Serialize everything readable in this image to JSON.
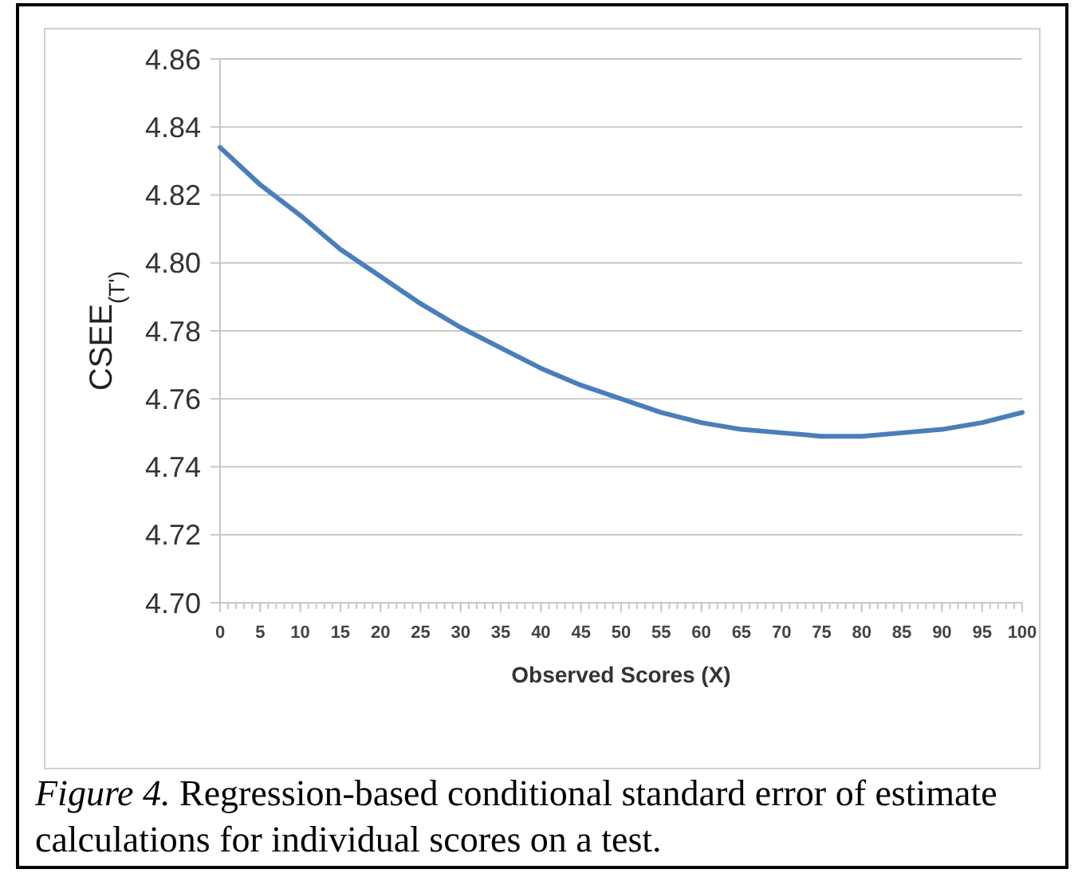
{
  "chart_data": {
    "type": "line",
    "xlabel": "Observed Scores (X)",
    "ylabel": "CSEE$_{(T')}$",
    "annotations": [
      "Figure 4. Regression-based conditional standard error of estimate calculations for individual scores on a test."
    ],
    "x": [
      0,
      5,
      10,
      15,
      20,
      25,
      30,
      35,
      40,
      45,
      50,
      55,
      60,
      65,
      70,
      75,
      80,
      85,
      90,
      95,
      100
    ],
    "series": [
      {
        "color": "#4a7ebb",
        "values": [
          4.834,
          4.823,
          4.814,
          4.804,
          4.796,
          4.788,
          4.781,
          4.775,
          4.769,
          4.764,
          4.76,
          4.756,
          4.753,
          4.751,
          4.75,
          4.749,
          4.749,
          4.75,
          4.751,
          4.753,
          4.756
        ]
      }
    ],
    "xlim": [
      0,
      100
    ],
    "xticks": [
      0,
      5,
      10,
      15,
      20,
      25,
      30,
      35,
      40,
      45,
      50,
      55,
      60,
      65,
      70,
      75,
      80,
      85,
      90,
      95,
      100
    ],
    "ylim": [
      4.7,
      4.86
    ],
    "yticks": [
      {
        "value": 4.7,
        "label": "4.70"
      },
      {
        "value": 4.72,
        "label": "4.72"
      },
      {
        "value": 4.74,
        "label": "4.74"
      },
      {
        "value": 4.76,
        "label": "4.76"
      },
      {
        "value": 4.78,
        "label": "4.78"
      },
      {
        "value": 4.8,
        "label": "4.80"
      },
      {
        "value": 4.82,
        "label": "4.82"
      },
      {
        "value": 4.84,
        "label": "4.84"
      },
      {
        "value": 4.86,
        "label": "4.86"
      }
    ],
    "grid": "y",
    "marker": "none",
    "line_style": "solid"
  }
}
